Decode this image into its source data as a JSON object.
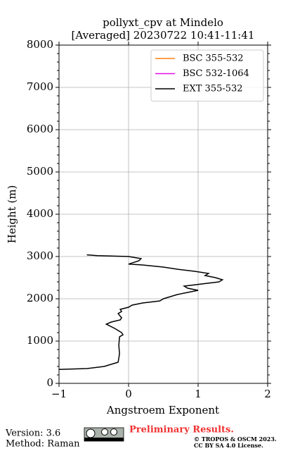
{
  "chart_data": {
    "type": "line",
    "title": "pollyxt_cpv at Mindelo",
    "subtitle": "[Averaged] 20230722 10:41-11:41",
    "xlabel": "Angstroem Exponent",
    "ylabel": "Height (m)",
    "orientation": "vertical-profile",
    "y": [
      330,
      350,
      400,
      500,
      700,
      900,
      1100,
      1150,
      1200,
      1250,
      1300,
      1400,
      1450,
      1500,
      1550,
      1650,
      1700,
      1750,
      1800,
      1850,
      1900,
      1950,
      2000,
      2100,
      2200,
      2250,
      2300,
      2400,
      2450,
      2500,
      2550,
      2600,
      2650,
      2700,
      2750,
      2800,
      2820,
      2900,
      2950,
      3000,
      3020,
      3040
    ],
    "series": [
      {
        "name": "BSC 355-532",
        "color": "#ff7f0e",
        "values": [
          null,
          null,
          null,
          null,
          null,
          null,
          null,
          null,
          null,
          null,
          null,
          null,
          null,
          null,
          null,
          null,
          null,
          null,
          null,
          null,
          null,
          null,
          null,
          null,
          null,
          null,
          null,
          null,
          null,
          null,
          null,
          null,
          null,
          null,
          null,
          null,
          null,
          null,
          null,
          null,
          null,
          null
        ]
      },
      {
        "name": "BSC 532-1064",
        "color": "#e60fe6",
        "values": [
          null,
          null,
          null,
          null,
          null,
          null,
          null,
          null,
          null,
          null,
          null,
          null,
          null,
          null,
          null,
          null,
          null,
          null,
          null,
          null,
          null,
          null,
          null,
          null,
          null,
          null,
          null,
          null,
          null,
          null,
          null,
          null,
          null,
          null,
          null,
          null,
          null,
          null,
          null,
          null,
          null,
          null
        ]
      },
      {
        "name": "EXT 355-532",
        "color": "#000000",
        "values": [
          -1,
          -0.6,
          -0.35,
          -0.15,
          -0.13,
          -0.14,
          -0.13,
          -0.08,
          -0.1,
          -0.15,
          -0.2,
          -0.32,
          -0.25,
          -0.12,
          -0.1,
          -0.15,
          -0.1,
          -0.12,
          0.0,
          0.05,
          0.2,
          0.45,
          0.5,
          0.7,
          1.0,
          0.85,
          0.8,
          1.3,
          1.35,
          1.25,
          1.1,
          1.15,
          0.95,
          0.7,
          0.5,
          0.2,
          0.0,
          0.15,
          0.18,
          0.0,
          -0.45,
          -0.6
        ]
      }
    ],
    "xlim": [
      -1,
      2
    ],
    "xticks": [
      {
        "value": -1,
        "label": "−1"
      },
      0,
      1,
      2
    ],
    "ylim": [
      0,
      8000
    ],
    "yticks": [
      0,
      1000,
      2000,
      3000,
      4000,
      5000,
      6000,
      7000,
      8000
    ],
    "grid": true,
    "legend": "upper right"
  },
  "footer": {
    "version": "Version: 3.6",
    "method": "Method: Raman",
    "notice": "Preliminary Results.",
    "copyright": "© TROPOS & OSCM 2023.",
    "license": "CC BY SA 4.0 License."
  }
}
